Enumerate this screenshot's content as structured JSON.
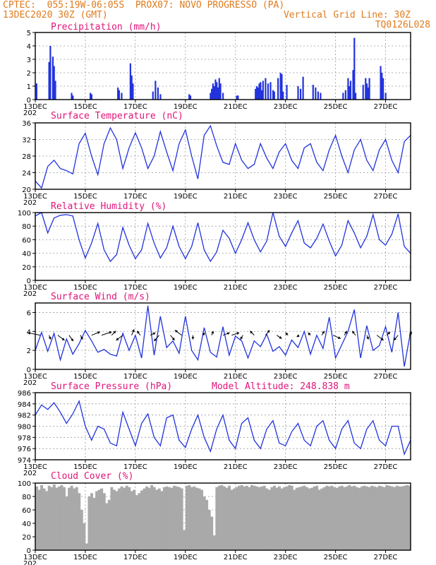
{
  "header": {
    "line1_left": "CPTEC:  055:19W-06:05S  PROX07: NOVO PROGRESSO (PA)",
    "line2_left": "13DEC2020 30Z (GMT)",
    "line2_right": "Vertical Grid Line: 30Z",
    "line3_right": "TQ0126L028",
    "colors": {
      "header": "#e07b1e",
      "title": "#e0147a",
      "series": "#2233dd",
      "cloud": "#a9a9a9"
    }
  },
  "x_axis": {
    "tick_labels": [
      "13DEC",
      "15DEC",
      "17DEC",
      "19DEC",
      "21DEC",
      "23DEC",
      "25DEC",
      "27DEC"
    ],
    "tick_days": [
      13,
      15,
      17,
      19,
      21,
      23,
      25,
      27
    ],
    "year_stub": "202",
    "range_days": [
      13,
      28
    ]
  },
  "chart_data": [
    {
      "type": "bar",
      "title": "Precipitation (mm/h)",
      "ylim": [
        0,
        5
      ],
      "yticks": [
        0,
        1,
        2,
        3,
        4,
        5
      ],
      "x": [
        13.05,
        13.55,
        13.6,
        13.7,
        13.75,
        13.8,
        14.45,
        14.5,
        15.2,
        15.25,
        16.3,
        16.35,
        16.45,
        16.8,
        16.85,
        16.9,
        17.7,
        17.8,
        17.9,
        18.0,
        19.15,
        19.2,
        20.0,
        20.05,
        20.1,
        20.15,
        20.2,
        20.25,
        20.3,
        20.35,
        20.4,
        20.5,
        21.05,
        21.1,
        21.8,
        21.85,
        21.9,
        21.95,
        22.0,
        22.05,
        22.1,
        22.2,
        22.3,
        22.4,
        22.5,
        22.55,
        22.7,
        22.8,
        22.85,
        22.9,
        23.05,
        23.5,
        23.6,
        23.7,
        24.1,
        24.2,
        24.3,
        24.4,
        25.3,
        25.4,
        25.5,
        25.55,
        25.6,
        25.7,
        25.75,
        25.8,
        26.1,
        26.2,
        26.25,
        26.3,
        26.35,
        26.8,
        26.85,
        26.9,
        27.0
      ],
      "values": [
        1.2,
        2.8,
        4.0,
        3.2,
        2.5,
        1.4,
        0.5,
        0.3,
        0.5,
        0.4,
        0.9,
        0.7,
        0.5,
        2.7,
        1.8,
        1.2,
        0.6,
        1.4,
        0.9,
        0.4,
        0.4,
        0.3,
        0.5,
        0.8,
        1.2,
        1.0,
        1.5,
        1.3,
        0.9,
        1.6,
        1.2,
        0.5,
        0.3,
        0.3,
        0.8,
        1.0,
        0.9,
        1.2,
        1.3,
        0.7,
        1.4,
        1.6,
        1.2,
        1.3,
        0.7,
        0.6,
        1.6,
        2.0,
        1.9,
        0.6,
        1.1,
        1.0,
        0.8,
        1.7,
        1.1,
        0.9,
        0.6,
        0.5,
        0.5,
        0.7,
        1.6,
        1.0,
        1.4,
        2.2,
        4.6,
        0.5,
        1.1,
        1.6,
        1.2,
        0.9,
        1.6,
        2.5,
        2.0,
        1.6,
        0.5
      ]
    },
    {
      "type": "line",
      "title": "Surface Temperature (nC)",
      "ylim": [
        20,
        36
      ],
      "yticks": [
        20,
        24,
        28,
        32,
        36
      ],
      "x": [
        13.0,
        13.25,
        13.5,
        13.75,
        14.0,
        14.25,
        14.5,
        14.75,
        15.0,
        15.25,
        15.5,
        15.75,
        16.0,
        16.25,
        16.5,
        16.75,
        17.0,
        17.25,
        17.5,
        17.75,
        18.0,
        18.25,
        18.5,
        18.75,
        19.0,
        19.25,
        19.5,
        19.75,
        20.0,
        20.25,
        20.5,
        20.75,
        21.0,
        21.25,
        21.5,
        21.75,
        22.0,
        22.25,
        22.5,
        22.75,
        23.0,
        23.25,
        23.5,
        23.75,
        24.0,
        24.25,
        24.5,
        24.75,
        25.0,
        25.25,
        25.5,
        25.75,
        26.0,
        26.25,
        26.5,
        26.75,
        27.0,
        27.25,
        27.5,
        27.75,
        28.0
      ],
      "values": [
        22.0,
        20.3,
        25.5,
        27.0,
        25.0,
        24.5,
        23.7,
        31.0,
        33.5,
        28.0,
        23.5,
        31.0,
        34.8,
        32.0,
        25.0,
        30.0,
        33.6,
        30.0,
        25.0,
        28.0,
        33.9,
        29.0,
        24.5,
        31.0,
        34.3,
        28.0,
        22.5,
        33.0,
        35.3,
        30.5,
        26.5,
        26.0,
        31.0,
        27.0,
        25.0,
        26.0,
        31.0,
        27.5,
        25.0,
        29.0,
        31.0,
        27.0,
        25.0,
        30.0,
        31.0,
        26.5,
        24.5,
        29.5,
        33.0,
        28.0,
        24.0,
        29.5,
        32.0,
        27.0,
        24.5,
        29.5,
        32.0,
        27.0,
        24.0,
        31.5,
        33.0
      ]
    },
    {
      "type": "line",
      "title": "Relative Humidity (%)",
      "ylim": [
        0,
        100
      ],
      "yticks": [
        0,
        20,
        40,
        60,
        80,
        100
      ],
      "x": [
        13.0,
        13.25,
        13.5,
        13.75,
        14.0,
        14.25,
        14.5,
        14.75,
        15.0,
        15.25,
        15.5,
        15.75,
        16.0,
        16.25,
        16.5,
        16.75,
        17.0,
        17.25,
        17.5,
        17.75,
        18.0,
        18.25,
        18.5,
        18.75,
        19.0,
        19.25,
        19.5,
        19.75,
        20.0,
        20.25,
        20.5,
        20.75,
        21.0,
        21.25,
        21.5,
        21.75,
        22.0,
        22.25,
        22.5,
        22.75,
        23.0,
        23.25,
        23.5,
        23.75,
        24.0,
        24.25,
        24.5,
        24.75,
        25.0,
        25.25,
        25.5,
        25.75,
        26.0,
        26.25,
        26.5,
        26.75,
        27.0,
        27.25,
        27.5,
        27.75,
        28.0
      ],
      "values": [
        95,
        100,
        70,
        92,
        96,
        97,
        95,
        60,
        33,
        55,
        84,
        45,
        28,
        38,
        78,
        52,
        32,
        45,
        84,
        55,
        33,
        48,
        80,
        50,
        32,
        50,
        85,
        45,
        28,
        42,
        74,
        62,
        40,
        60,
        85,
        60,
        42,
        58,
        100,
        65,
        50,
        70,
        88,
        55,
        48,
        62,
        83,
        58,
        36,
        52,
        88,
        70,
        48,
        65,
        97,
        60,
        52,
        68,
        98,
        50,
        40
      ]
    },
    {
      "type": "line",
      "title": "Surface Wind (m/s)",
      "ylim": [
        0,
        7
      ],
      "yticks": [
        0,
        2,
        4,
        6
      ],
      "x": [
        13.0,
        13.25,
        13.5,
        13.75,
        14.0,
        14.25,
        14.5,
        14.75,
        15.0,
        15.25,
        15.5,
        15.75,
        16.0,
        16.25,
        16.5,
        16.75,
        17.0,
        17.25,
        17.5,
        17.75,
        18.0,
        18.25,
        18.5,
        18.75,
        19.0,
        19.25,
        19.5,
        19.75,
        20.0,
        20.25,
        20.5,
        20.75,
        21.0,
        21.25,
        21.5,
        21.75,
        22.0,
        22.25,
        22.5,
        22.75,
        23.0,
        23.25,
        23.5,
        23.75,
        24.0,
        24.25,
        24.5,
        24.75,
        25.0,
        25.25,
        25.5,
        25.75,
        26.0,
        26.25,
        26.5,
        26.75,
        27.0,
        27.25,
        27.5,
        27.75,
        28.0
      ],
      "values": [
        2.0,
        3.9,
        1.9,
        3.8,
        1.0,
        3.2,
        1.6,
        2.7,
        4.1,
        3.0,
        1.8,
        2.1,
        1.6,
        1.4,
        3.8,
        2.0,
        3.6,
        1.2,
        6.7,
        1.5,
        5.6,
        2.3,
        3.0,
        1.7,
        5.6,
        2.0,
        1.0,
        4.4,
        1.8,
        1.3,
        4.5,
        1.5,
        3.5,
        3.0,
        1.2,
        3.0,
        2.4,
        3.7,
        1.9,
        2.4,
        1.5,
        3.1,
        2.3,
        4.0,
        1.6,
        3.6,
        2.2,
        5.5,
        1.2,
        2.6,
        4.0,
        6.3,
        1.2,
        4.6,
        2.0,
        2.5,
        4.5,
        1.8,
        6.0,
        0.3,
        4.0
      ],
      "vectors": {
        "x": [
          13.2,
          13.55,
          13.9,
          14.35,
          14.8,
          15.25,
          15.65,
          16.05,
          16.5,
          16.85,
          17.2,
          17.6,
          17.95,
          18.4,
          18.85,
          19.3,
          19.7,
          20.05,
          20.5,
          20.85,
          21.3,
          21.75,
          22.2,
          22.65,
          23.1,
          23.55,
          24.0,
          24.45,
          24.9,
          25.35,
          25.8,
          26.25,
          26.65,
          27.05,
          27.5,
          27.95
        ],
        "u": [
          -1.5,
          0.2,
          0.8,
          0.5,
          0.3,
          1.0,
          1.2,
          0.5,
          -0.8,
          0.3,
          -0.4,
          0.6,
          -0.6,
          0.5,
          -0.8,
          0.0,
          0.2,
          0.2,
          0.8,
          0.9,
          -0.3,
          -0.5,
          0.5,
          0.6,
          -0.3,
          -0.3,
          -0.3,
          0.3,
          0.9,
          0.3,
          -0.4,
          0.2,
          0.8,
          0.4,
          -0.5,
          0.3
        ],
        "v": [
          0.3,
          -0.5,
          -0.6,
          -0.7,
          -0.5,
          0.4,
          0.4,
          0.5,
          -0.6,
          0.7,
          0.5,
          0.3,
          -0.7,
          -0.6,
          0.6,
          -0.5,
          0.3,
          0.5,
          0.3,
          0.3,
          -0.5,
          0.5,
          0.6,
          -0.4,
          0.3,
          -0.2,
          0.3,
          0.5,
          -0.4,
          0.5,
          0.5,
          -0.5,
          -0.6,
          0.4,
          -0.6,
          0.4
        ]
      }
    },
    {
      "type": "line",
      "title": "Surface Pressure (hPa)",
      "annotation": "Model Altitude: 248.838  m",
      "ylim": [
        974,
        986
      ],
      "yticks": [
        974,
        976,
        978,
        980,
        982,
        984,
        986
      ],
      "x": [
        13.0,
        13.25,
        13.5,
        13.75,
        14.0,
        14.25,
        14.5,
        14.75,
        15.0,
        15.25,
        15.5,
        15.75,
        16.0,
        16.25,
        16.5,
        16.75,
        17.0,
        17.25,
        17.5,
        17.75,
        18.0,
        18.25,
        18.5,
        18.75,
        19.0,
        19.25,
        19.5,
        19.75,
        20.0,
        20.25,
        20.5,
        20.75,
        21.0,
        21.25,
        21.5,
        21.75,
        22.0,
        22.25,
        22.5,
        22.75,
        23.0,
        23.25,
        23.5,
        23.75,
        24.0,
        24.25,
        24.5,
        24.75,
        25.0,
        25.25,
        25.5,
        25.75,
        26.0,
        26.25,
        26.5,
        26.75,
        27.0,
        27.25,
        27.5,
        27.75,
        28.0
      ],
      "values": [
        982.0,
        983.8,
        983.0,
        984.2,
        982.5,
        980.5,
        982.2,
        984.5,
        980.0,
        977.5,
        980.0,
        979.5,
        977.0,
        976.5,
        982.5,
        979.5,
        976.5,
        980.5,
        982.2,
        978.0,
        976.5,
        981.5,
        982.0,
        977.5,
        976.2,
        979.5,
        982.0,
        978.0,
        975.5,
        979.5,
        982.0,
        977.5,
        976.0,
        980.5,
        981.5,
        977.5,
        976.0,
        979.5,
        981.0,
        977.0,
        976.5,
        979.0,
        980.5,
        977.5,
        976.5,
        980.0,
        981.0,
        977.5,
        976.0,
        979.5,
        981.0,
        977.0,
        976.0,
        979.5,
        981.0,
        977.5,
        976.5,
        980.0,
        980.0,
        975.0,
        977.5
      ]
    },
    {
      "type": "bar",
      "title": "Cloud Cover (%)",
      "ylim": [
        0,
        100
      ],
      "yticks": [
        0,
        20,
        40,
        60,
        80,
        100
      ],
      "x": [
        13.0,
        13.1,
        13.2,
        13.3,
        13.4,
        13.5,
        13.6,
        13.7,
        13.8,
        13.9,
        14.0,
        14.1,
        14.2,
        14.3,
        14.4,
        14.5,
        14.6,
        14.7,
        14.8,
        14.9,
        15.0,
        15.1,
        15.2,
        15.3,
        15.4,
        15.5,
        15.6,
        15.7,
        15.8,
        15.9,
        16.0,
        16.1,
        16.2,
        16.3,
        16.4,
        16.5,
        16.6,
        16.7,
        16.8,
        16.9,
        17.0,
        17.1,
        17.2,
        17.3,
        17.4,
        17.5,
        17.6,
        17.7,
        17.8,
        17.9,
        18.0,
        18.1,
        18.2,
        18.3,
        18.4,
        18.5,
        18.6,
        18.7,
        18.8,
        18.9,
        19.0,
        19.1,
        19.2,
        19.3,
        19.4,
        19.5,
        19.6,
        19.7,
        19.8,
        19.9,
        20.0,
        20.1,
        20.2,
        20.3,
        20.4,
        20.5,
        20.6,
        20.7,
        20.8,
        20.9,
        21.0,
        21.1,
        21.2,
        21.3,
        21.4,
        21.5,
        21.6,
        21.7,
        21.8,
        21.9,
        22.0,
        22.1,
        22.2,
        22.3,
        22.4,
        22.5,
        22.6,
        22.7,
        22.8,
        22.9,
        23.0,
        23.1,
        23.2,
        23.3,
        23.4,
        23.5,
        23.6,
        23.7,
        23.8,
        23.9,
        24.0,
        24.1,
        24.2,
        24.3,
        24.4,
        24.5,
        24.6,
        24.7,
        24.8,
        24.9,
        25.0,
        25.1,
        25.2,
        25.3,
        25.4,
        25.5,
        25.6,
        25.7,
        25.8,
        25.9,
        26.0,
        26.1,
        26.2,
        26.3,
        26.4,
        26.5,
        26.6,
        26.7,
        26.8,
        26.9,
        27.0,
        27.1,
        27.2,
        27.3,
        27.4,
        27.5,
        27.6,
        27.7,
        27.8,
        27.9
      ],
      "values": [
        95,
        90,
        97,
        92,
        88,
        96,
        94,
        98,
        93,
        95,
        97,
        94,
        80,
        93,
        96,
        92,
        94,
        85,
        60,
        40,
        10,
        80,
        85,
        78,
        88,
        90,
        92,
        85,
        70,
        75,
        94,
        90,
        88,
        92,
        95,
        93,
        96,
        94,
        88,
        90,
        82,
        85,
        89,
        92,
        95,
        93,
        97,
        94,
        90,
        92,
        88,
        94,
        95,
        94,
        93,
        96,
        95,
        94,
        92,
        30,
        96,
        97,
        94,
        95,
        93,
        92,
        90,
        80,
        75,
        60,
        50,
        22,
        94,
        96,
        97,
        95,
        93,
        96,
        90,
        92,
        94,
        96,
        97,
        95,
        96,
        94,
        97,
        96,
        95,
        94,
        95,
        96,
        92,
        90,
        94,
        96,
        93,
        95,
        92,
        94,
        95,
        97,
        96,
        90,
        93,
        94,
        95,
        96,
        94,
        92,
        93,
        95,
        96,
        90,
        92,
        94,
        96,
        95,
        96,
        94,
        93,
        95,
        96,
        94,
        95,
        97,
        95,
        96,
        94,
        93,
        95,
        96,
        95,
        94,
        96,
        95,
        94,
        96,
        95,
        94,
        97,
        96,
        95,
        94,
        96,
        95,
        95,
        96,
        97,
        96
      ]
    }
  ]
}
